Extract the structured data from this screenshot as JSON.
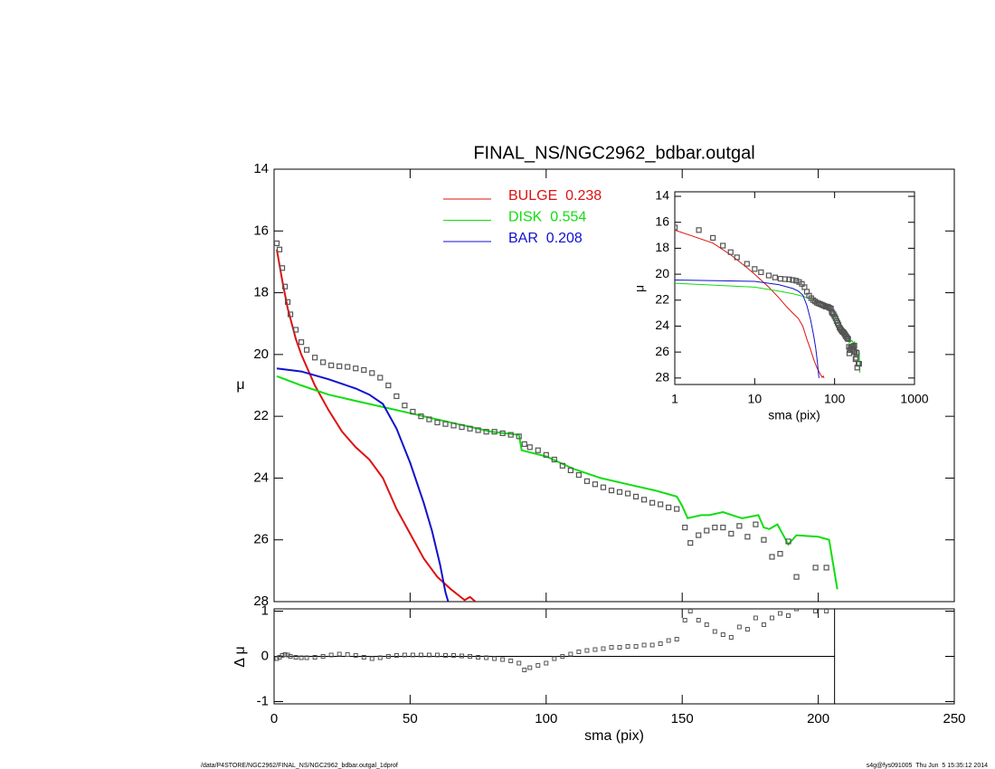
{
  "chart_data": [
    {
      "type": "line",
      "title": "FINAL_NS/NGC2962_bdbar.outgal",
      "ylabel": "μ",
      "xlim": [
        0,
        250
      ],
      "ylim": [
        28,
        14
      ],
      "yticks": [
        14,
        16,
        18,
        20,
        22,
        24,
        26,
        28
      ],
      "xticks": [
        0,
        50,
        100,
        150,
        200,
        250
      ],
      "points": {
        "color": "#555555",
        "x": [
          1,
          2,
          3,
          4,
          5,
          6,
          8,
          10,
          12,
          15,
          18,
          21,
          24,
          27,
          30,
          33,
          36,
          39,
          42,
          45,
          48,
          51,
          54,
          57,
          60,
          63,
          66,
          69,
          72,
          75,
          78,
          81,
          84,
          87,
          90,
          92,
          94,
          97,
          100,
          103,
          106,
          109,
          112,
          115,
          118,
          121,
          124,
          127,
          130,
          133,
          136,
          139,
          142,
          145,
          148,
          151,
          153,
          156,
          159,
          162,
          165,
          168,
          171,
          174,
          177,
          180,
          183,
          186,
          189,
          192,
          199,
          203
        ],
        "values": [
          16.4,
          16.6,
          17.2,
          17.8,
          18.3,
          18.7,
          19.2,
          19.6,
          19.85,
          20.1,
          20.25,
          20.35,
          20.38,
          20.4,
          20.45,
          20.5,
          20.6,
          20.75,
          21.0,
          21.35,
          21.65,
          21.85,
          22.0,
          22.1,
          22.2,
          22.25,
          22.3,
          22.35,
          22.4,
          22.45,
          22.5,
          22.5,
          22.55,
          22.6,
          22.65,
          22.9,
          23.0,
          23.1,
          23.25,
          23.4,
          23.6,
          23.75,
          23.9,
          24.1,
          24.2,
          24.3,
          24.4,
          24.45,
          24.5,
          24.6,
          24.7,
          24.8,
          24.85,
          24.95,
          25.0,
          25.6,
          26.1,
          25.85,
          25.7,
          25.6,
          25.6,
          25.8,
          25.55,
          25.9,
          25.5,
          26.0,
          26.55,
          26.45,
          26.05,
          27.2,
          26.9,
          26.9
        ]
      },
      "series": [
        {
          "name": "BULGE  0.238",
          "color": "#dd1111",
          "x": [
            1,
            3,
            5,
            8,
            10,
            15,
            20,
            25,
            30,
            35,
            40,
            45,
            50,
            55,
            60,
            65,
            70,
            72,
            74
          ],
          "values": [
            16.6,
            17.6,
            18.5,
            19.5,
            20.0,
            21.0,
            21.8,
            22.5,
            23.0,
            23.4,
            24.0,
            25.0,
            25.8,
            26.6,
            27.2,
            27.6,
            27.95,
            27.85,
            28.0
          ]
        },
        {
          "name": "DISK  0.554",
          "color": "#11dd11",
          "x": [
            1,
            10,
            20,
            30,
            40,
            50,
            60,
            70,
            80,
            90,
            91,
            100,
            110,
            120,
            130,
            140,
            148,
            150,
            152,
            157,
            160,
            165,
            170,
            172,
            178,
            180,
            182,
            185,
            189,
            192,
            200,
            204,
            207
          ],
          "values": [
            20.7,
            21.0,
            21.3,
            21.5,
            21.7,
            21.9,
            22.1,
            22.3,
            22.5,
            22.6,
            23.1,
            23.3,
            23.7,
            24.0,
            24.2,
            24.4,
            24.6,
            24.9,
            25.3,
            25.2,
            25.2,
            25.1,
            25.25,
            25.3,
            25.2,
            25.6,
            25.65,
            25.5,
            26.15,
            25.85,
            25.9,
            26.0,
            27.6
          ]
        },
        {
          "name": "BAR  0.208",
          "color": "#1111cc",
          "x": [
            1,
            10,
            20,
            30,
            35,
            40,
            45,
            50,
            55,
            58,
            61,
            63,
            64
          ],
          "values": [
            20.45,
            20.55,
            20.8,
            21.1,
            21.3,
            21.6,
            22.4,
            23.5,
            24.8,
            25.7,
            26.8,
            27.7,
            28.0
          ]
        }
      ]
    },
    {
      "type": "scatter",
      "xlabel": "sma (pix)",
      "ylabel": "Δ μ",
      "xlim": [
        0,
        250
      ],
      "xticks": [
        0,
        50,
        100,
        150,
        200,
        250
      ],
      "ylim": [
        -1.05,
        1.05
      ],
      "yticks": [
        -1,
        0,
        1
      ],
      "fit_limit": 206,
      "values": [
        -0.05,
        -0.02,
        0.02,
        0.04,
        0.03,
        0.0,
        -0.02,
        -0.03,
        -0.03,
        -0.02,
        0.0,
        0.03,
        0.05,
        0.04,
        0.02,
        -0.02,
        -0.05,
        -0.03,
        0.0,
        0.02,
        0.03,
        0.03,
        0.03,
        0.03,
        0.03,
        0.02,
        0.02,
        0.01,
        0.0,
        -0.02,
        -0.03,
        -0.05,
        -0.07,
        -0.1,
        -0.15,
        -0.3,
        -0.25,
        -0.2,
        -0.15,
        -0.05,
        0.0,
        0.05,
        0.1,
        0.13,
        0.15,
        0.17,
        0.2,
        0.2,
        0.22,
        0.22,
        0.25,
        0.25,
        0.28,
        0.35,
        0.38,
        0.8,
        1.0,
        0.8,
        0.7,
        0.55,
        0.48,
        0.42,
        0.65,
        0.6,
        0.85,
        0.7,
        0.85,
        0.95,
        0.9,
        1.05,
        1.0,
        1.0
      ]
    },
    {
      "type": "line",
      "xscale": "log",
      "xlabel": "sma (pix)",
      "ylabel": "μ",
      "xlim": [
        1,
        1000
      ],
      "xticks": [
        1,
        10,
        100,
        1000
      ],
      "ylim": [
        28.5,
        13.65
      ],
      "yticks": [
        14,
        16,
        18,
        20,
        22,
        24,
        26,
        28
      ]
    }
  ],
  "footer": {
    "left": "/data/P4STORE/NGC2962/FINAL_NS/NGC2962_bdbar.outgal_1dprof",
    "right": "s4g@fys091005  Thu Jun  5 15:35:12 2014"
  }
}
